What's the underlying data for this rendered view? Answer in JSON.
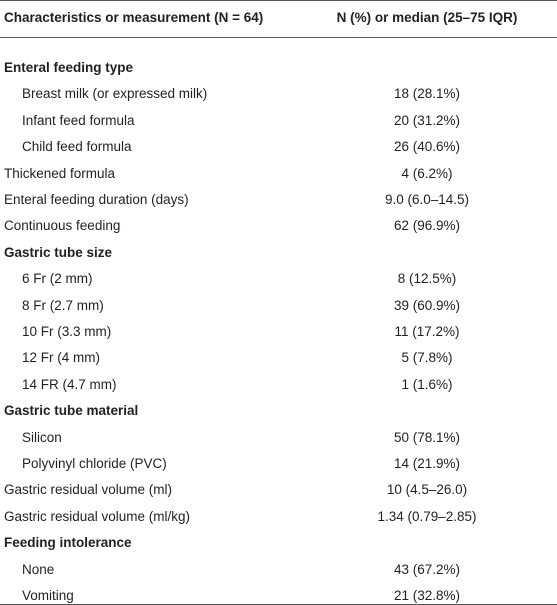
{
  "table": {
    "header": [
      "Characteristics or measurement (N = 64)",
      "N (%) or median (25–75 IQR)"
    ],
    "rows": [
      {
        "heading": "Enteral feeding type",
        "rows": [
          [
            "Breast milk (or expressed milk)",
            "18 (28.1%)"
          ],
          [
            "Infant feed formula",
            "20 (31.2%)"
          ],
          [
            "Child feed formula",
            "26 (40.6%)"
          ]
        ]
      },
      [
        "Thickened formula",
        "4 (6.2%)"
      ],
      [
        "Enteral feeding duration (days)",
        "9.0 (6.0–14.5)"
      ],
      [
        "Continuous feeding",
        "62 (96.9%)"
      ],
      {
        "heading": "Gastric tube size",
        "rows": [
          [
            "6 Fr (2 mm)",
            "8 (12.5%)"
          ],
          [
            "8 Fr (2.7 mm)",
            "39 (60.9%)"
          ],
          [
            "10 Fr (3.3 mm)",
            "11 (17.2%)"
          ],
          [
            "12 Fr (4 mm)",
            "5 (7.8%)"
          ],
          [
            "14 FR (4.7 mm)",
            "1 (1.6%)"
          ]
        ]
      },
      {
        "heading": "Gastric tube material",
        "rows": [
          [
            "Silicon",
            "50 (78.1%)"
          ],
          [
            "Polyvinyl chloride (PVC)",
            "14 (21.9%)"
          ]
        ]
      },
      [
        "Gastric residual volume (ml)",
        "10 (4.5–26.0)"
      ],
      [
        "Gastric residual volume (ml/kg)",
        "1.34 (0.79–2.85)"
      ],
      {
        "heading": "Feeding intolerance",
        "rows": [
          [
            "None",
            "43 (67.2%)"
          ],
          [
            "Vomiting",
            "21 (32.8%)"
          ]
        ]
      }
    ]
  }
}
